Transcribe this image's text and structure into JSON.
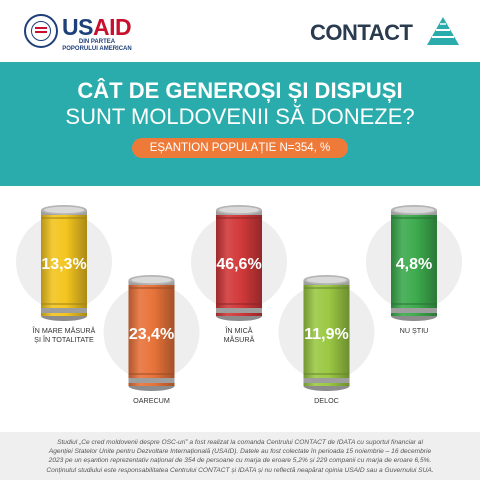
{
  "header": {
    "usaid_word_blue": "US",
    "usaid_word_red": "AID",
    "usaid_subtitle": "DIN PARTEA POPORULUI AMERICAN",
    "contact_name": "CONTACT"
  },
  "banner": {
    "title_line1": "CÂT DE GENEROȘI ȘI DISPUȘI",
    "title_line2": "SUNT MOLDOVENII SĂ DONEZE?",
    "sample_label": "EȘANTION POPULAȚIE N=354, %"
  },
  "chart_data": {
    "type": "bar",
    "title": "CÂT DE GENEROȘI ȘI DISPUȘI SUNT MOLDOVENII SĂ DONEZE?",
    "subtitle": "EȘANTION POPULAȚIE N=354, %",
    "unit": "%",
    "categories": [
      [
        "ÎN MARE MĂSURĂ",
        "ȘI ÎN TOTALITATE"
      ],
      [
        "OARECUM"
      ],
      [
        "ÎN MICĂ",
        "MĂSURĂ"
      ],
      [
        "DELOC"
      ],
      [
        "NU ȘTIU"
      ]
    ],
    "values": [
      13.3,
      23.4,
      46.6,
      11.9,
      4.8
    ],
    "value_labels": [
      "13,3%",
      "23,4%",
      "46,6%",
      "11,9%",
      "4,8%"
    ],
    "colors": [
      "#f3c520",
      "#e8733a",
      "#d2393a",
      "#9bc944",
      "#3dab4e"
    ],
    "levels": [
      "high",
      "low",
      "high",
      "low",
      "high"
    ]
  },
  "footer": {
    "line1": "Studiul „Ce cred moldovenii despre OSC-uri” a fost realizat la comanda Centrului CONTACT de IDATA cu suportul financiar al",
    "line2": "Agenției Statelor Unite pentru Dezvoltare Internațională (USAID). Datele au fost colectate în perioada 15 noiembrie – 16 decembrie",
    "line3": "2023 pe un eșantion reprezentativ național de 354 de persoane cu marja de eroare 5,2% și 229 companii cu marja de eroare 6,5%.",
    "line4": "Conținutul studiului este responsabilitatea Centrului CONTACT și IDATA și nu reflectă neapărat opinia USAID sau a Guvernului SUA."
  }
}
